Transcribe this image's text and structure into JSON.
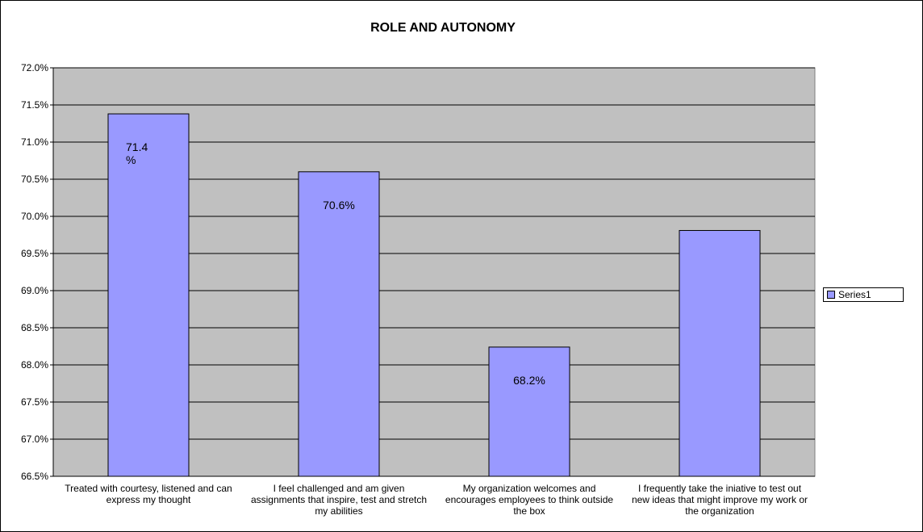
{
  "chart_data": {
    "type": "bar",
    "title": "ROLE AND AUTONOMY",
    "xlabel": "",
    "ylabel": "",
    "categories": [
      [
        "Treated with courtesy, listened  and can",
        "express my thought"
      ],
      [
        "I feel challenged and am given",
        "assignments that inspire, test and stretch",
        "my abilities"
      ],
      [
        "My organization welcomes and",
        "encourages  employees to think outside",
        "the box"
      ],
      [
        "I frequently take the iniative to test out",
        "new ideas that might improve my work or",
        "the organization"
      ]
    ],
    "series": [
      {
        "name": "Series1",
        "color": "#9999ff",
        "values": [
          71.38,
          70.6,
          68.24,
          69.81
        ],
        "data_labels": [
          [
            "71.4",
            "%"
          ],
          [
            "70.6%"
          ],
          [
            "68.2%"
          ],
          []
        ]
      }
    ],
    "ylim": [
      66.5,
      72.0
    ],
    "ytick_step": 0.5,
    "ytick_suffix": "%",
    "plot_bg": "#c0c0c0",
    "grid": true,
    "legend": {
      "position": "right",
      "entries": [
        "Series1"
      ]
    }
  }
}
